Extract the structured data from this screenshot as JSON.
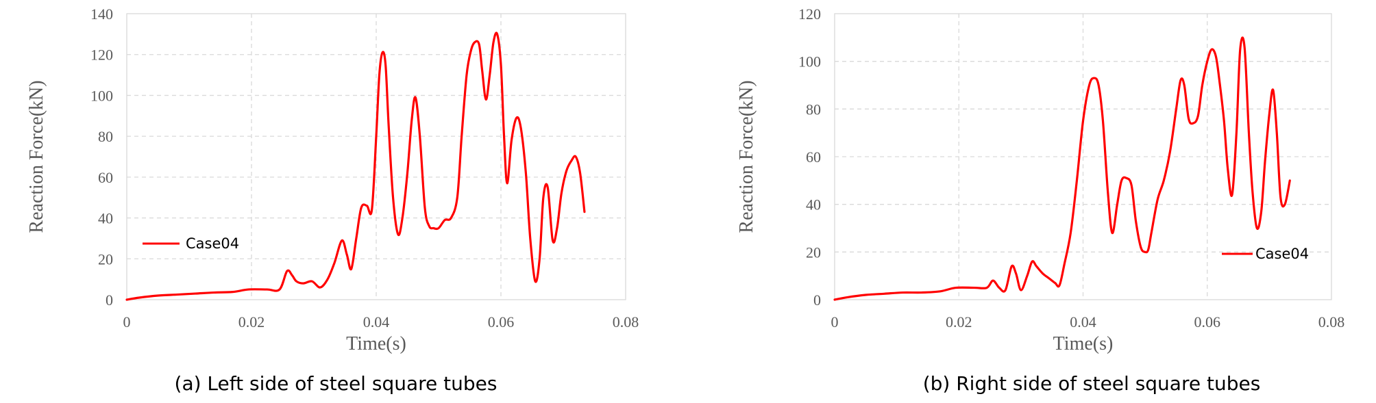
{
  "chart_data": [
    {
      "type": "line",
      "xlabel": "Time(s)",
      "ylabel": "Reaction Force(kN)",
      "xlim": [
        0,
        0.08
      ],
      "ylim": [
        0,
        140
      ],
      "xticks": [
        "0",
        "0.02",
        "0.04",
        "0.06",
        "0.08"
      ],
      "yticks": [
        "0",
        "20",
        "40",
        "60",
        "80",
        "100",
        "120",
        "140"
      ],
      "grid": true,
      "legend_position": "left",
      "caption": "(a) Left side of steel square tubes",
      "color": "#ff0000",
      "series": [
        {
          "name": "Case04",
          "x": [
            0,
            0.002,
            0.005,
            0.008,
            0.011,
            0.014,
            0.017,
            0.0195,
            0.0225,
            0.0245,
            0.0257,
            0.0265,
            0.0272,
            0.0283,
            0.0297,
            0.031,
            0.0322,
            0.0333,
            0.0345,
            0.0353,
            0.036,
            0.0368,
            0.0376,
            0.0385,
            0.0393,
            0.04,
            0.0405,
            0.041,
            0.0415,
            0.042,
            0.0427,
            0.0435,
            0.0442,
            0.045,
            0.0457,
            0.0463,
            0.047,
            0.0478,
            0.0485,
            0.0492,
            0.05,
            0.051,
            0.052,
            0.053,
            0.0537,
            0.0545,
            0.0552,
            0.0558,
            0.0565,
            0.057,
            0.0576,
            0.0582,
            0.0588,
            0.0594,
            0.06,
            0.0605,
            0.061,
            0.0617,
            0.0625,
            0.0632,
            0.064,
            0.0647,
            0.0655,
            0.0662,
            0.0668,
            0.0675,
            0.0683,
            0.069,
            0.0697,
            0.0705,
            0.0713,
            0.072,
            0.0727,
            0.0734
          ],
          "y": [
            0,
            1,
            2,
            2.5,
            3,
            3.5,
            3.8,
            5,
            5,
            5,
            14,
            12,
            9,
            8,
            9,
            6,
            10,
            18,
            29,
            22,
            15,
            30,
            45,
            46,
            44,
            80,
            110,
            121,
            115,
            85,
            50,
            32,
            40,
            62,
            88,
            99,
            80,
            45,
            36,
            35,
            35,
            39,
            40,
            50,
            80,
            110,
            122,
            126,
            125,
            112,
            98,
            110,
            126,
            130,
            115,
            80,
            57,
            78,
            89,
            84,
            62,
            30,
            9,
            20,
            50,
            55,
            29,
            35,
            52,
            63,
            68,
            70,
            62,
            43
          ]
        }
      ]
    },
    {
      "type": "line",
      "xlabel": "Time(s)",
      "ylabel": "Reaction Force(kN)",
      "xlim": [
        0,
        0.08
      ],
      "ylim": [
        0,
        120
      ],
      "xticks": [
        "0",
        "0.02",
        "0.04",
        "0.06",
        "0.08"
      ],
      "yticks": [
        "0",
        "20",
        "40",
        "60",
        "80",
        "100",
        "120"
      ],
      "grid": true,
      "legend_position": "bottom-right",
      "caption": "(b) Right side of steel square tubes",
      "color": "#ff0000",
      "series": [
        {
          "name": "Case04",
          "x": [
            0,
            0.002,
            0.005,
            0.008,
            0.011,
            0.014,
            0.017,
            0.0195,
            0.0225,
            0.0245,
            0.0255,
            0.0265,
            0.0275,
            0.0285,
            0.0292,
            0.03,
            0.031,
            0.0318,
            0.0325,
            0.0335,
            0.0345,
            0.0355,
            0.0362,
            0.037,
            0.038,
            0.039,
            0.04,
            0.041,
            0.0418,
            0.0425,
            0.0432,
            0.044,
            0.0447,
            0.0455,
            0.0462,
            0.047,
            0.0478,
            0.0485,
            0.0493,
            0.05,
            0.0505,
            0.051,
            0.052,
            0.053,
            0.054,
            0.055,
            0.0557,
            0.0563,
            0.057,
            0.0577,
            0.0585,
            0.0592,
            0.06,
            0.0607,
            0.0614,
            0.062,
            0.0627,
            0.0633,
            0.064,
            0.0647,
            0.0653,
            0.066,
            0.0667,
            0.0673,
            0.068,
            0.0687,
            0.0693,
            0.07,
            0.0706,
            0.0712,
            0.0718,
            0.0725,
            0.0733
          ],
          "y": [
            0,
            1,
            2,
            2.5,
            3,
            3,
            3.5,
            5,
            5,
            5,
            8,
            5,
            4,
            14,
            11,
            4,
            10,
            16,
            14,
            11,
            9,
            7,
            6,
            15,
            28,
            50,
            75,
            90,
            93,
            90,
            75,
            45,
            28,
            40,
            50,
            51,
            48,
            33,
            22,
            20,
            21,
            28,
            42,
            50,
            62,
            80,
            92,
            90,
            76,
            74,
            77,
            90,
            100,
            105,
            102,
            91,
            75,
            55,
            44,
            70,
            105,
            106,
            70,
            45,
            30,
            37,
            58,
            78,
            88,
            70,
            43,
            40,
            50
          ]
        }
      ]
    }
  ]
}
